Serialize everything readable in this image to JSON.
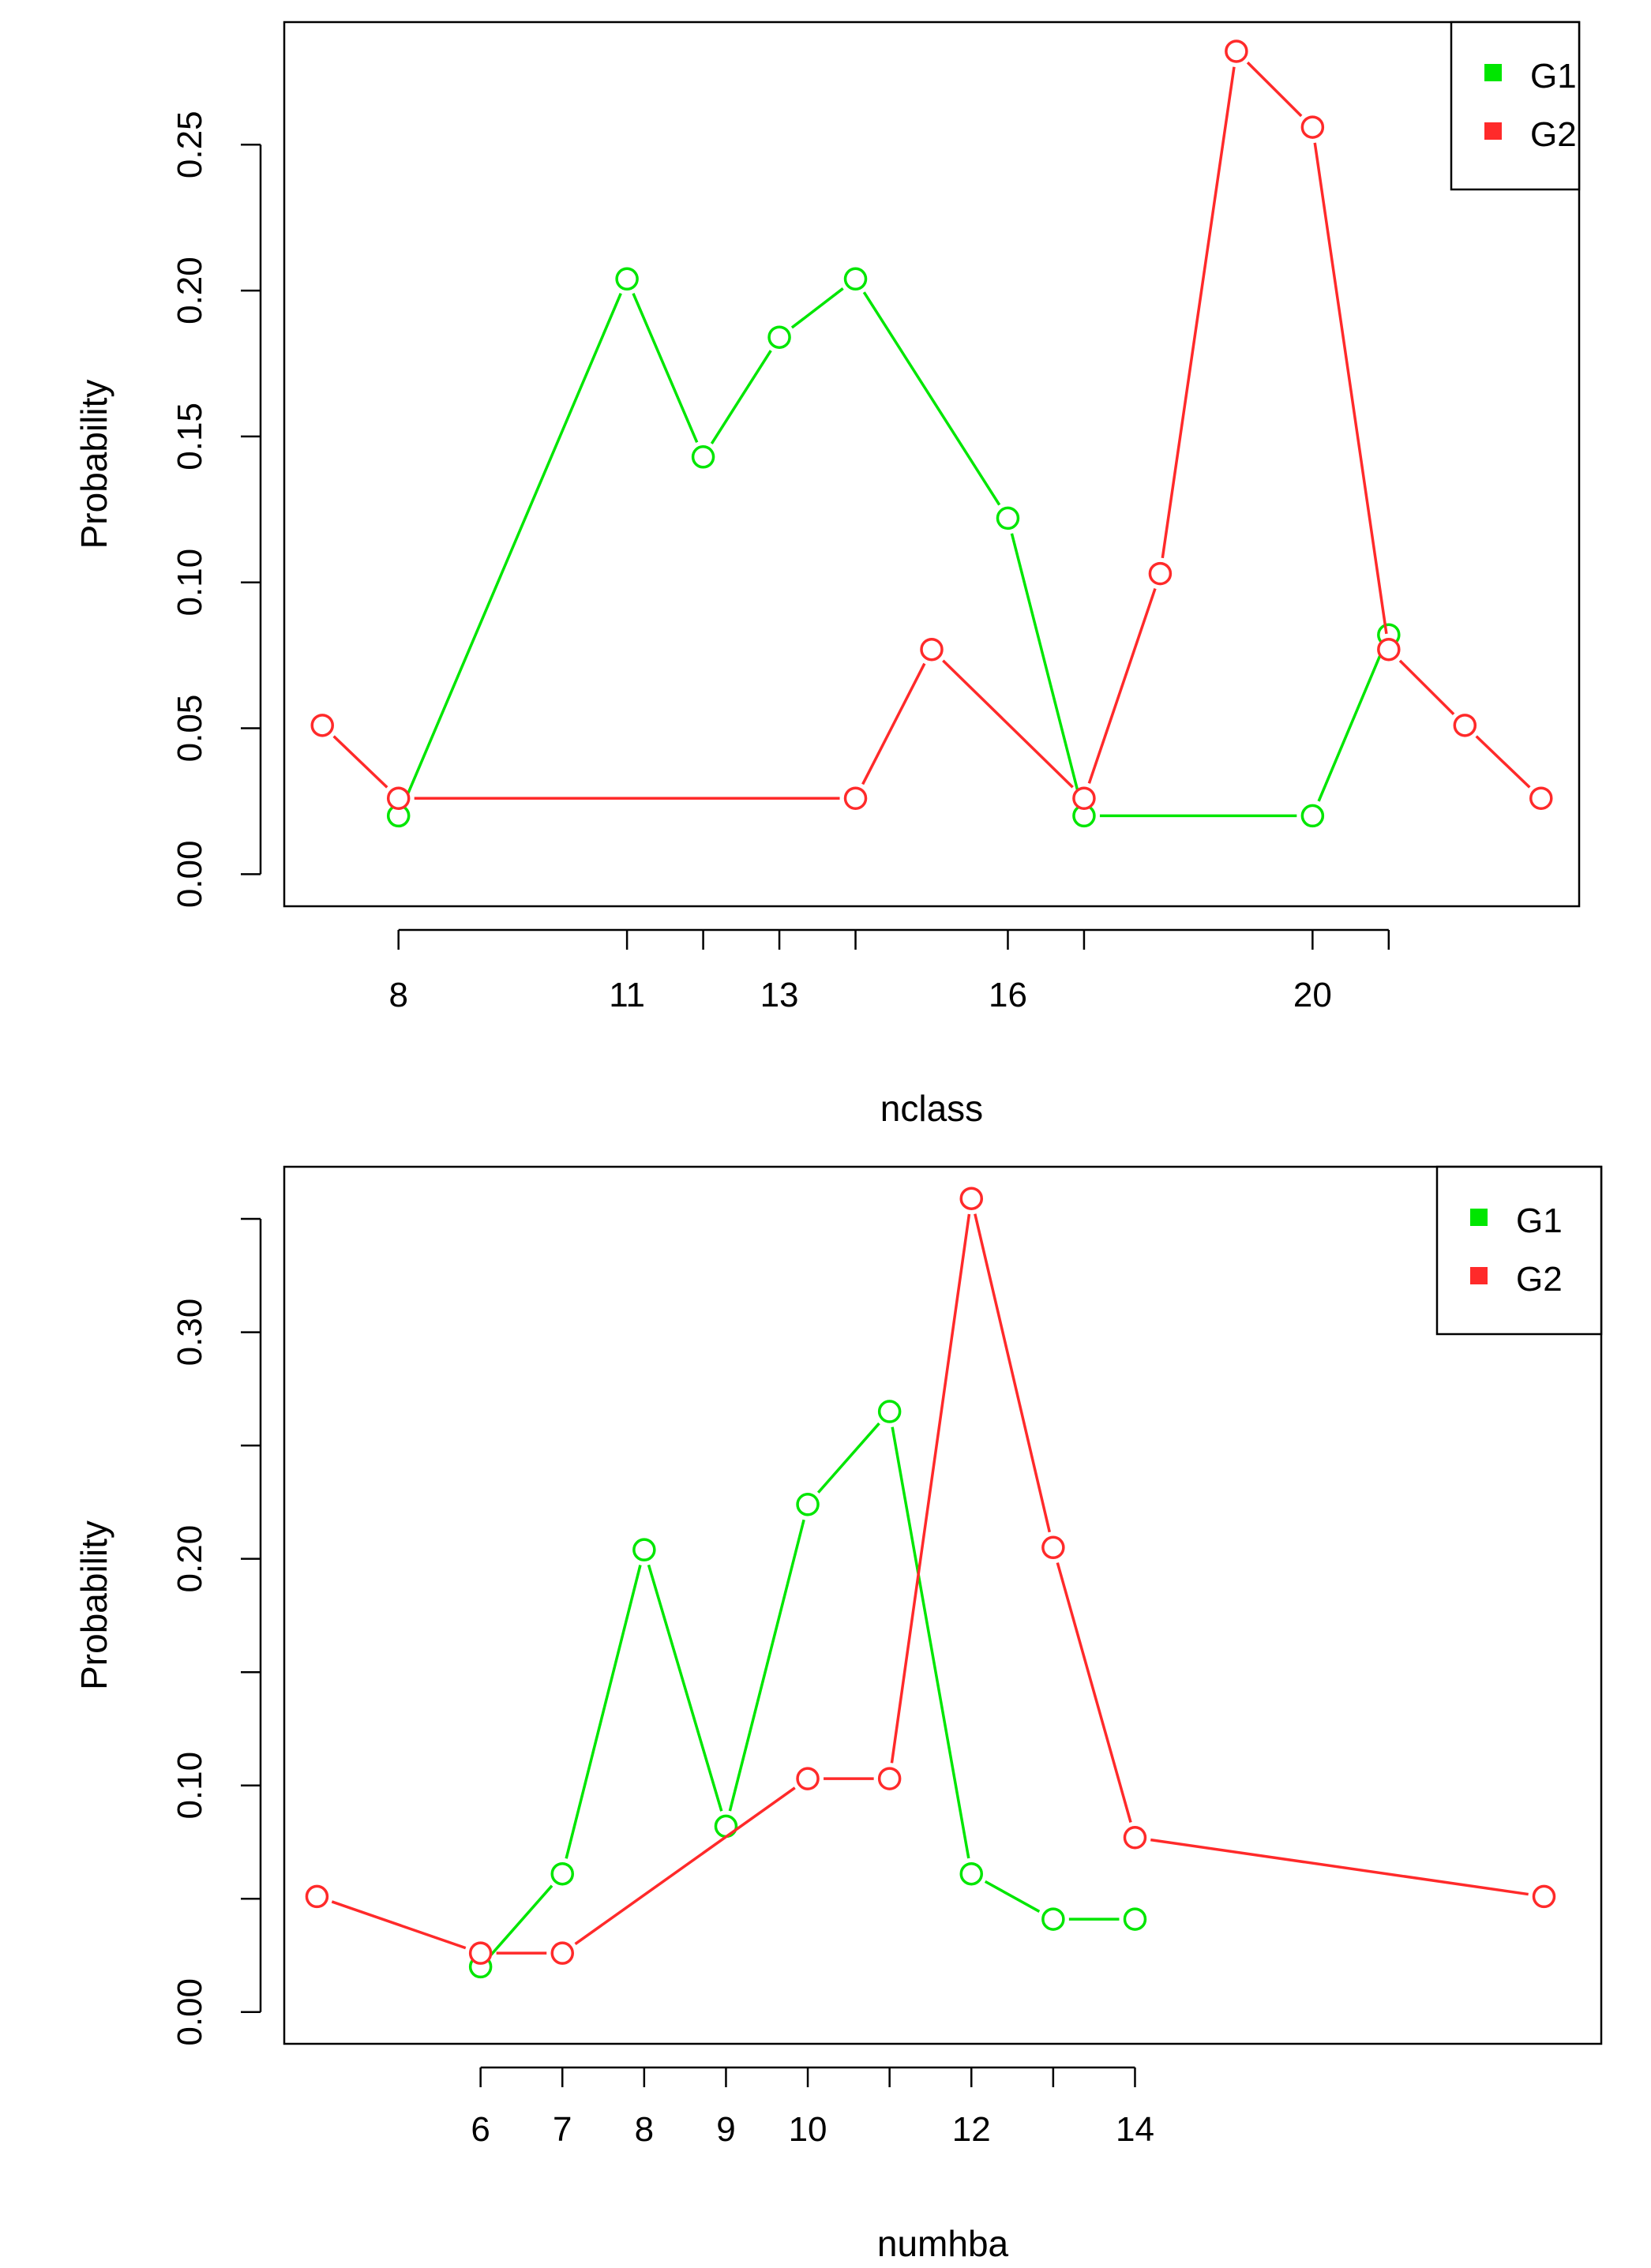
{
  "chart_data": [
    {
      "type": "line",
      "title": "",
      "xlabel": "nclass",
      "ylabel": "Probability",
      "xlim": [
        6.5,
        23.5
      ],
      "ylim": [
        -0.011,
        0.292
      ],
      "x_tick_values": [
        8,
        11,
        12,
        13,
        14,
        16,
        17,
        20,
        21
      ],
      "x_tick_labels": [
        "8",
        "11",
        "",
        "13",
        "",
        "16",
        "",
        "20",
        ""
      ],
      "y_tick_values": [
        0,
        0.05,
        0.1,
        0.15,
        0.2,
        0.25
      ],
      "y_tick_labels": [
        "0.00",
        "0.05",
        "0.10",
        "0.15",
        "0.20",
        "0.25"
      ],
      "legend_position": "top-right",
      "series": [
        {
          "name": "G1",
          "color": "#00e600",
          "x": [
            8,
            11,
            12,
            13,
            14,
            16,
            17,
            20,
            21
          ],
          "values": [
            0.02,
            0.204,
            0.143,
            0.184,
            0.204,
            0.122,
            0.02,
            0.02,
            0.082
          ]
        },
        {
          "name": "G2",
          "color": "#ff2a2a",
          "x": [
            7,
            8,
            14,
            15,
            17,
            18,
            19,
            20,
            21,
            22,
            23
          ],
          "values": [
            0.051,
            0.026,
            0.026,
            0.077,
            0.026,
            0.103,
            0.282,
            0.256,
            0.077,
            0.051,
            0.026
          ]
        }
      ]
    },
    {
      "type": "line",
      "title": "",
      "xlabel": "numhba",
      "ylabel": "Probability",
      "xlim": [
        3.6,
        19.7
      ],
      "ylim": [
        -0.014,
        0.373
      ],
      "x_tick_values": [
        6,
        7,
        8,
        9,
        10,
        11,
        12,
        13,
        14
      ],
      "x_tick_labels": [
        "6",
        "7",
        "8",
        "9",
        "10",
        "",
        "12",
        "",
        "14"
      ],
      "y_tick_values": [
        0,
        0.05,
        0.1,
        0.15,
        0.2,
        0.25,
        0.3,
        0.35
      ],
      "y_tick_labels": [
        "0.00",
        "",
        "0.10",
        "",
        "0.20",
        "",
        "0.30",
        ""
      ],
      "legend_position": "top-right",
      "series": [
        {
          "name": "G1",
          "color": "#00e600",
          "x": [
            6,
            7,
            8,
            9,
            10,
            11,
            12,
            13,
            14
          ],
          "values": [
            0.02,
            0.061,
            0.204,
            0.082,
            0.224,
            0.265,
            0.061,
            0.041,
            0.041
          ]
        },
        {
          "name": "G2",
          "color": "#ff2a2a",
          "x": [
            4,
            6,
            7,
            10,
            11,
            12,
            13,
            14,
            19
          ],
          "values": [
            0.051,
            0.026,
            0.026,
            0.103,
            0.103,
            0.359,
            0.205,
            0.077,
            0.051
          ]
        }
      ]
    }
  ]
}
